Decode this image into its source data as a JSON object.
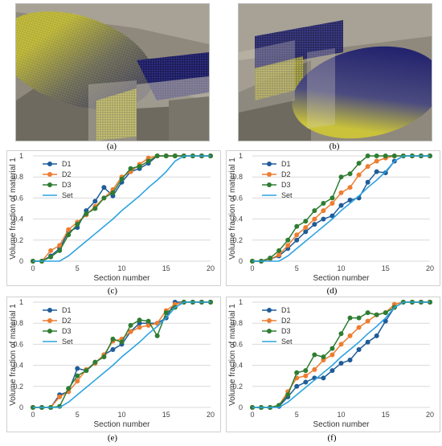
{
  "panels": {
    "a": "(a)",
    "b": "(b)",
    "c": "(c)",
    "d": "(d)",
    "e": "(e)",
    "f": "(f)"
  },
  "colors": {
    "D1": "#1f5c99",
    "D2": "#ed7d31",
    "D3": "#2e7d32",
    "Set": "#2ea3e0",
    "grid": "#d9d9d9",
    "render_bg": "#8b857a",
    "particle_yellow": "#c9c23a",
    "particle_blue": "#23236e"
  },
  "chart_data": [
    {
      "id": "c",
      "type": "line",
      "xlabel": "Section number",
      "ylabel": "Volume fraction of material 1",
      "xlim": [
        0,
        20
      ],
      "ylim": [
        0,
        1
      ],
      "xticks": [
        0,
        5,
        10,
        15,
        20
      ],
      "yticks": [
        0,
        0.2,
        0.4,
        0.6,
        0.8,
        1
      ],
      "grid": true,
      "legend_position": "top-left",
      "x": [
        0,
        1,
        2,
        3,
        4,
        5,
        6,
        7,
        8,
        9,
        10,
        11,
        12,
        13,
        14,
        15,
        16,
        17,
        18,
        19,
        20
      ],
      "series": [
        {
          "name": "D1",
          "values": [
            0,
            0,
            0.05,
            0.12,
            0.28,
            0.32,
            0.48,
            0.57,
            0.7,
            0.62,
            0.75,
            0.85,
            0.88,
            0.93,
            1,
            1,
            1,
            1,
            1,
            1,
            1
          ]
        },
        {
          "name": "D2",
          "values": [
            0,
            0,
            0.1,
            0.15,
            0.3,
            0.37,
            0.44,
            0.52,
            0.6,
            0.68,
            0.8,
            0.85,
            0.92,
            0.98,
            1,
            1,
            1,
            1,
            1,
            1,
            1
          ]
        },
        {
          "name": "D3",
          "values": [
            0,
            0,
            0.04,
            0.1,
            0.25,
            0.35,
            0.45,
            0.5,
            0.6,
            0.65,
            0.78,
            0.88,
            0.9,
            0.95,
            1,
            1,
            1,
            1,
            1,
            1,
            1
          ]
        },
        {
          "name": "Set",
          "values": [
            0,
            0,
            0,
            0,
            0.05,
            0.12,
            0.19,
            0.26,
            0.33,
            0.4,
            0.48,
            0.55,
            0.62,
            0.7,
            0.77,
            0.85,
            0.95,
            1,
            1,
            1,
            1
          ]
        }
      ]
    },
    {
      "id": "d",
      "type": "line",
      "xlabel": "Section number",
      "ylabel": "Volume fraction of material 1",
      "xlim": [
        0,
        20
      ],
      "ylim": [
        0,
        1
      ],
      "xticks": [
        0,
        5,
        10,
        15,
        20
      ],
      "yticks": [
        0,
        0.2,
        0.4,
        0.6,
        0.8,
        1
      ],
      "grid": true,
      "legend_position": "top-left",
      "x": [
        0,
        1,
        2,
        3,
        4,
        5,
        6,
        7,
        8,
        9,
        10,
        11,
        12,
        13,
        14,
        15,
        16,
        17,
        18,
        19,
        20
      ],
      "series": [
        {
          "name": "D1",
          "values": [
            0,
            0,
            0.02,
            0.05,
            0.12,
            0.2,
            0.28,
            0.35,
            0.4,
            0.43,
            0.53,
            0.58,
            0.6,
            0.75,
            0.85,
            0.84,
            0.95,
            1,
            1,
            1,
            1
          ]
        },
        {
          "name": "D2",
          "values": [
            0,
            0,
            0.02,
            0.06,
            0.15,
            0.25,
            0.32,
            0.4,
            0.48,
            0.55,
            0.65,
            0.7,
            0.82,
            0.9,
            0.95,
            0.98,
            1,
            1,
            1,
            1,
            1
          ]
        },
        {
          "name": "D3",
          "values": [
            0,
            0,
            0.03,
            0.1,
            0.2,
            0.33,
            0.38,
            0.48,
            0.55,
            0.6,
            0.8,
            0.83,
            0.93,
            1,
            1,
            1,
            1,
            1,
            1,
            1,
            1
          ]
        },
        {
          "name": "Set",
          "values": [
            0,
            0,
            0,
            0,
            0.05,
            0.12,
            0.19,
            0.26,
            0.33,
            0.4,
            0.48,
            0.55,
            0.62,
            0.7,
            0.77,
            0.85,
            0.95,
            1,
            1,
            1,
            1
          ]
        }
      ]
    },
    {
      "id": "e",
      "type": "line",
      "xlabel": "Section number",
      "ylabel": "Volume fraction of material 1",
      "xlim": [
        0,
        20
      ],
      "ylim": [
        0,
        1
      ],
      "xticks": [
        0,
        5,
        10,
        15,
        20
      ],
      "yticks": [
        0,
        0.2,
        0.4,
        0.6,
        0.8,
        1
      ],
      "grid": true,
      "legend_position": "top-left",
      "x": [
        0,
        1,
        2,
        3,
        4,
        5,
        6,
        7,
        8,
        9,
        10,
        11,
        12,
        13,
        14,
        15,
        16,
        17,
        18,
        19,
        20
      ],
      "series": [
        {
          "name": "D1",
          "values": [
            0,
            0,
            0,
            0.12,
            0.15,
            0.37,
            0.35,
            0.42,
            0.5,
            0.55,
            0.6,
            0.72,
            0.8,
            0.8,
            0.8,
            0.85,
            1,
            1,
            1,
            1,
            1
          ]
        },
        {
          "name": "D2",
          "values": [
            0,
            0,
            0,
            0.1,
            0.15,
            0.25,
            0.36,
            0.42,
            0.5,
            0.63,
            0.65,
            0.72,
            0.76,
            0.78,
            0.8,
            0.92,
            0.98,
            1,
            1,
            1,
            1
          ]
        },
        {
          "name": "D3",
          "values": [
            0,
            0,
            0,
            0.01,
            0.18,
            0.3,
            0.35,
            0.43,
            0.48,
            0.65,
            0.62,
            0.78,
            0.83,
            0.82,
            0.68,
            0.9,
            0.95,
            1,
            1,
            1,
            1
          ]
        },
        {
          "name": "Set",
          "values": [
            0,
            0,
            0,
            0,
            0.05,
            0.12,
            0.19,
            0.26,
            0.33,
            0.4,
            0.48,
            0.55,
            0.62,
            0.7,
            0.77,
            0.85,
            0.95,
            1,
            1,
            1,
            1
          ]
        }
      ]
    },
    {
      "id": "f",
      "type": "line",
      "xlabel": "Section number",
      "ylabel": "Volume fraction of material 1",
      "xlim": [
        0,
        20
      ],
      "ylim": [
        0,
        1
      ],
      "xticks": [
        0,
        5,
        10,
        15,
        20
      ],
      "yticks": [
        0,
        0.2,
        0.4,
        0.6,
        0.8,
        1
      ],
      "grid": true,
      "legend_position": "top-left",
      "x": [
        0,
        1,
        2,
        3,
        4,
        5,
        6,
        7,
        8,
        9,
        10,
        11,
        12,
        13,
        14,
        15,
        16,
        17,
        18,
        19,
        20
      ],
      "series": [
        {
          "name": "D1",
          "values": [
            0,
            0,
            0,
            0.01,
            0.1,
            0.2,
            0.24,
            0.28,
            0.28,
            0.35,
            0.42,
            0.45,
            0.55,
            0.62,
            0.68,
            0.82,
            0.95,
            1,
            1,
            1,
            1
          ]
        },
        {
          "name": "D2",
          "values": [
            0,
            0,
            0,
            0.02,
            0.15,
            0.28,
            0.3,
            0.36,
            0.45,
            0.5,
            0.6,
            0.68,
            0.76,
            0.82,
            0.88,
            0.9,
            0.98,
            1,
            1,
            1,
            1
          ]
        },
        {
          "name": "D3",
          "values": [
            0,
            0,
            0,
            0.02,
            0.12,
            0.33,
            0.35,
            0.5,
            0.48,
            0.56,
            0.7,
            0.85,
            0.85,
            0.9,
            0.88,
            0.9,
            0.95,
            1,
            1,
            1,
            1
          ]
        },
        {
          "name": "Set",
          "values": [
            0,
            0,
            0,
            0,
            0.05,
            0.12,
            0.19,
            0.26,
            0.33,
            0.4,
            0.48,
            0.55,
            0.62,
            0.7,
            0.77,
            0.85,
            0.95,
            1,
            1,
            1,
            1
          ]
        }
      ]
    }
  ]
}
